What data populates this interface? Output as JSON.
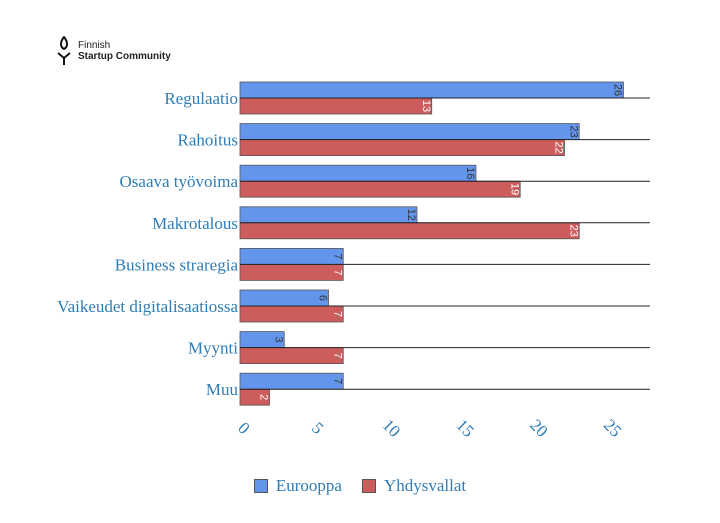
{
  "logo": {
    "line1": "Finnish",
    "line2": "Startup Community"
  },
  "chart_data": {
    "type": "bar",
    "orientation": "horizontal",
    "categories": [
      "Regulaatio",
      "Rahoitus",
      "Osaava työvoima",
      "Makrotalous",
      "Business straregia",
      "Vaikeudet digitalisaatiossa",
      "Myynti",
      "Muu"
    ],
    "series": [
      {
        "name": "Eurooppa",
        "color": "#6495ed",
        "values": [
          26,
          23,
          16,
          12,
          7,
          6,
          3,
          7
        ]
      },
      {
        "name": "Yhdysvallat",
        "color": "#cd5c5c",
        "values": [
          13,
          22,
          19,
          23,
          7,
          7,
          7,
          2
        ]
      }
    ],
    "xticks": [
      0,
      5,
      10,
      15,
      20,
      25
    ],
    "xlim": [
      0,
      28
    ],
    "legend_position": "bottom"
  }
}
